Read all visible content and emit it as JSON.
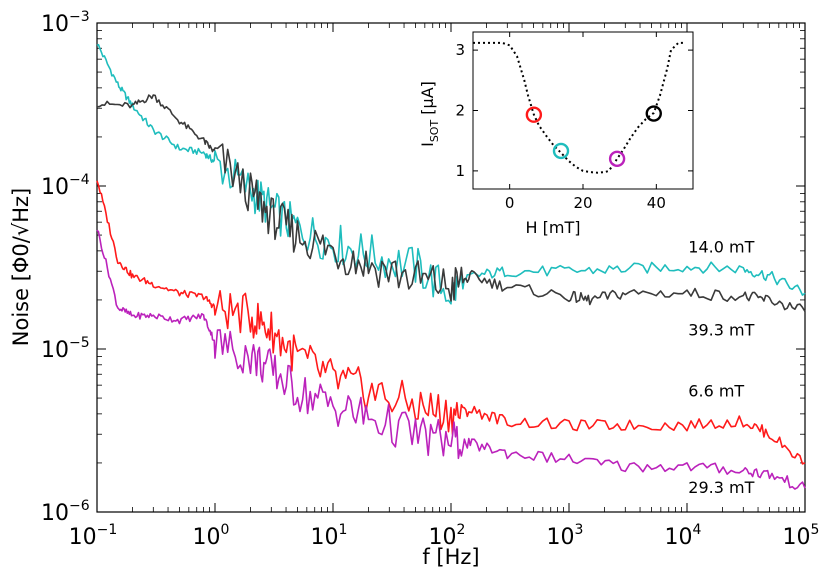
{
  "chart_data": [
    {
      "type": "line",
      "x_scale": "log",
      "y_scale": "log",
      "xlim": [
        0.1,
        100000
      ],
      "ylim": [
        1e-06,
        0.001
      ],
      "xlabel": "f [Hz]",
      "ylabel": "Noise [Φ0/√Hz]",
      "x_ticks": [
        {
          "base": "10",
          "exp": "−1",
          "value": 0.1
        },
        {
          "base": "10",
          "exp": "0",
          "value": 1
        },
        {
          "base": "10",
          "exp": "1",
          "value": 10
        },
        {
          "base": "10",
          "exp": "2",
          "value": 100
        },
        {
          "base": "10",
          "exp": "3",
          "value": 1000
        },
        {
          "base": "10",
          "exp": "4",
          "value": 10000
        },
        {
          "base": "10",
          "exp": "5",
          "value": 100000
        }
      ],
      "y_ticks": [
        {
          "base": "10",
          "exp": "−6",
          "value": 1e-06
        },
        {
          "base": "10",
          "exp": "−5",
          "value": 1e-05
        },
        {
          "base": "10",
          "exp": "−4",
          "value": 0.0001
        },
        {
          "base": "10",
          "exp": "−3",
          "value": 0.001
        }
      ],
      "series": [
        {
          "name": "14.0 mT",
          "color": "#1fbdbd",
          "x": [
            0.1,
            0.15,
            0.2,
            0.3,
            0.5,
            0.8,
            1,
            2,
            3,
            5,
            10,
            20,
            50,
            100,
            150,
            300,
            1000,
            3000,
            10000,
            30000,
            50000,
            100000
          ],
          "y": [
            0.00075,
            0.00042,
            0.00031,
            0.00022,
            0.00017,
            0.00016,
            0.00014,
            9.5e-05,
            7.2e-05,
            5.5e-05,
            4.5e-05,
            3.8e-05,
            3.2e-05,
            2.2e-05,
            2.8e-05,
            3e-05,
            3e-05,
            3.1e-05,
            3.2e-05,
            3.1e-05,
            2.8e-05,
            2.2e-05
          ]
        },
        {
          "name": "39.3 mT",
          "color": "#3a3a3a",
          "x": [
            0.1,
            0.2,
            0.3,
            0.5,
            0.8,
            1,
            2,
            3,
            5,
            10,
            20,
            50,
            100,
            150,
            300,
            1000,
            1500,
            3000,
            10000,
            30000,
            50000,
            100000
          ],
          "y": [
            0.00032,
            0.00031,
            0.00036,
            0.00025,
            0.00019,
            0.00016,
            9e-05,
            6.5e-05,
            5e-05,
            4e-05,
            3.3e-05,
            2.7e-05,
            2.4e-05,
            2.8e-05,
            2.4e-05,
            2.1e-05,
            2e-05,
            2.2e-05,
            2.2e-05,
            2.1e-05,
            2e-05,
            1.7e-05
          ]
        },
        {
          "name": "6.6 mT",
          "color": "#ff1a1a",
          "x": [
            0.1,
            0.15,
            0.2,
            0.3,
            0.5,
            0.8,
            1,
            2,
            3,
            5,
            10,
            20,
            50,
            100,
            150,
            300,
            1000,
            3000,
            10000,
            30000,
            50000,
            100000
          ],
          "y": [
            0.00011,
            3.5e-05,
            2.8e-05,
            2.5e-05,
            2.2e-05,
            2.1e-05,
            1.8e-05,
            1.6e-05,
            1.3e-05,
            9e-06,
            6.5e-06,
            5.5e-06,
            4.5e-06,
            4e-06,
            4.2e-06,
            3.6e-06,
            3.4e-06,
            3.4e-06,
            3.4e-06,
            3.6e-06,
            3e-06,
            2e-06
          ]
        },
        {
          "name": "29.3 mT",
          "color": "#bb22bb",
          "x": [
            0.1,
            0.15,
            0.2,
            0.3,
            0.5,
            0.8,
            1,
            2,
            3,
            5,
            10,
            20,
            50,
            100,
            150,
            300,
            1000,
            3000,
            10000,
            30000,
            50000,
            100000
          ],
          "y": [
            5.5e-05,
            1.8e-05,
            1.6e-05,
            1.6e-05,
            1.5e-05,
            1.6e-05,
            1.1e-05,
            9e-06,
            7.5e-06,
            5.5e-06,
            4.5e-06,
            3.8e-06,
            3e-06,
            2.7e-06,
            2.6e-06,
            2.3e-06,
            2.1e-06,
            1.9e-06,
            1.9e-06,
            1.8e-06,
            1.7e-06,
            1.4e-06
          ]
        }
      ],
      "annotations": [
        {
          "text": "14.0 mT",
          "x": 30000,
          "y": 4.2e-05
        },
        {
          "text": "39.3 mT",
          "x": 30000,
          "y": 1.3e-05
        },
        {
          "text": "6.6 mT",
          "x": 30000,
          "y": 5.5e-06
        },
        {
          "text": "29.3 mT",
          "x": 30000,
          "y": 1.4e-06
        }
      ]
    },
    {
      "type": "scatter",
      "inset": true,
      "xlim": [
        -10,
        50
      ],
      "ylim": [
        0.7,
        3.3
      ],
      "xlabel": "H [mT]",
      "ylabel_main": "I",
      "ylabel_sub": "SOT",
      "ylabel_unit": " [μA]",
      "x_ticks": [
        0,
        20,
        40
      ],
      "y_ticks": [
        1,
        2,
        3
      ],
      "curve": {
        "style": "dotted",
        "color": "#000000",
        "x": [
          -10,
          -2,
          0,
          2,
          4,
          5,
          6,
          6.6,
          8,
          10,
          12,
          14,
          16,
          18,
          20,
          22,
          24,
          26,
          27,
          28,
          29.3,
          31,
          33,
          35,
          37,
          39.3,
          41,
          43,
          44,
          46,
          48
        ],
        "y": [
          3.12,
          3.12,
          3.08,
          2.9,
          2.5,
          2.25,
          2.05,
          1.93,
          1.75,
          1.58,
          1.42,
          1.3,
          1.17,
          1.07,
          1.0,
          0.98,
          0.97,
          0.98,
          1.0,
          1.08,
          1.2,
          1.35,
          1.55,
          1.72,
          1.85,
          1.96,
          2.25,
          2.7,
          3.0,
          3.12,
          3.12
        ]
      },
      "markers": [
        {
          "x": 6.6,
          "y": 1.93,
          "color": "#ff1a1a"
        },
        {
          "x": 14.0,
          "y": 1.33,
          "color": "#1fbdbd"
        },
        {
          "x": 29.3,
          "y": 1.2,
          "color": "#bb22bb"
        },
        {
          "x": 39.3,
          "y": 1.95,
          "color": "#000000"
        }
      ]
    }
  ]
}
